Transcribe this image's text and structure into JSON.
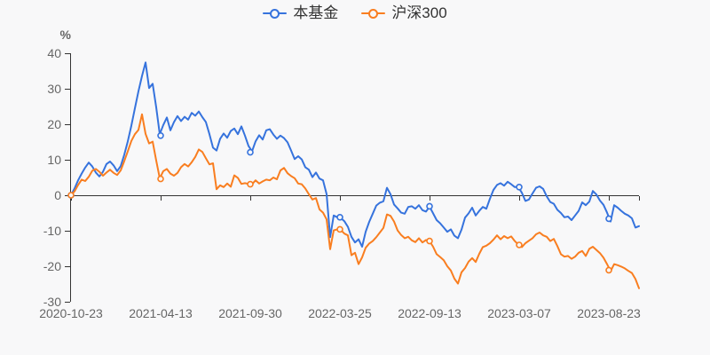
{
  "legend": {
    "items": [
      {
        "label": "本基金",
        "color": "#3673dd",
        "icon": "line-circle-marker"
      },
      {
        "label": "沪深300",
        "color": "#f97e20",
        "icon": "line-circle-marker"
      }
    ]
  },
  "colors": {
    "background": "#f8f8f9",
    "axis": "#333333",
    "tick_label": "#666666",
    "legend_text": "#333333"
  },
  "chart_data": {
    "type": "line",
    "title": "",
    "unit_label": "%",
    "xlabel": "",
    "ylabel": "%",
    "grid": false,
    "legend_position": "top-center",
    "ylim": [
      -30,
      40
    ],
    "y_ticks": [
      40,
      30,
      20,
      10,
      0,
      -10,
      -20,
      -30
    ],
    "x_tick_labels": [
      "2020-10-23",
      "2021-04-13",
      "2021-09-30",
      "2022-03-25",
      "2022-09-13",
      "2023-03-07",
      "2023-08-23"
    ],
    "marker_note": "hollow circle markers shown at each x tick date",
    "series": [
      {
        "name": "本基金",
        "color": "#3673dd",
        "marker_values": [
          0,
          16.8,
          12.1,
          -6.2,
          -3.1,
          2.3,
          -6.6
        ],
        "values": [
          0,
          1.9,
          4.2,
          6.1,
          7.8,
          9.2,
          8.1,
          6.4,
          5.3,
          6.6,
          8.8,
          9.5,
          8.4,
          6.8,
          8.2,
          11.4,
          15.2,
          19.6,
          24.5,
          29.3,
          33.6,
          37.4,
          30.2,
          31.4,
          24.8,
          17.2,
          19.8,
          21.9,
          18.3,
          20.6,
          22.3,
          20.9,
          22.1,
          21.3,
          23.2,
          22.4,
          23.6,
          22.0,
          20.6,
          17.2,
          13.4,
          12.6,
          15.9,
          17.4,
          16.2,
          18.1,
          18.8,
          17.2,
          19.4,
          16.8,
          13.9,
          12.4,
          15.2,
          16.9,
          15.7,
          18.3,
          18.6,
          17.1,
          15.9,
          16.8,
          16.1,
          14.9,
          12.6,
          10.2,
          11.0,
          10.1,
          7.9,
          7.2,
          5.1,
          6.4,
          4.7,
          4.2,
          0.3,
          -11.8,
          -5.7,
          -6.2,
          -6.4,
          -7.3,
          -8.9,
          -11.7,
          -13.3,
          -12.4,
          -14.5,
          -10.3,
          -7.5,
          -5.2,
          -2.9,
          -2.1,
          -1.7,
          2.1,
          0.3,
          -2.6,
          -3.7,
          -4.9,
          -5.2,
          -3.3,
          -3.1,
          -3.8,
          -2.8,
          -4.2,
          -4.6,
          -3.2,
          -5.1,
          -7.0,
          -7.9,
          -9.1,
          -10.3,
          -9.6,
          -11.4,
          -12.1,
          -9.7,
          -6.3,
          -5.1,
          -3.5,
          -5.7,
          -4.4,
          -3.3,
          -3.8,
          -1.0,
          1.5,
          2.9,
          3.4,
          2.7,
          3.8,
          3.1,
          2.3,
          2.3,
          0.7,
          -1.6,
          -1.2,
          0.5,
          2.1,
          2.5,
          1.8,
          -0.3,
          -1.9,
          -2.4,
          -4.1,
          -5.0,
          -6.2,
          -6.0,
          -7.0,
          -5.7,
          -4.4,
          -2.0,
          -2.8,
          -1.8,
          1.2,
          0.2,
          -1.5,
          -2.7,
          -4.9,
          -7.4,
          -2.8,
          -3.5,
          -4.4,
          -5.2,
          -5.7,
          -6.5,
          -9.1,
          -8.7
        ]
      },
      {
        "name": "沪深300",
        "color": "#f97e20",
        "marker_values": [
          0,
          4.6,
          3.1,
          -9.6,
          -12.9,
          -14.0,
          -21.1
        ],
        "values": [
          0,
          1.1,
          2.9,
          4.4,
          4.0,
          5.2,
          6.9,
          7.4,
          6.6,
          5.5,
          6.4,
          7.2,
          6.3,
          5.7,
          7.0,
          9.6,
          12.4,
          15.3,
          17.2,
          18.4,
          22.8,
          17.3,
          14.6,
          15.1,
          9.8,
          4.8,
          6.8,
          7.4,
          6.1,
          5.5,
          6.3,
          7.9,
          8.8,
          8.1,
          9.3,
          10.8,
          12.9,
          12.2,
          10.4,
          8.7,
          9.0,
          1.7,
          2.8,
          2.3,
          3.3,
          2.4,
          5.6,
          4.9,
          3.2,
          3.4,
          3.2,
          3.1,
          4.2,
          3.3,
          3.9,
          4.4,
          4.2,
          5.0,
          4.5,
          7.0,
          7.7,
          6.2,
          5.4,
          4.8,
          3.3,
          3.1,
          1.9,
          0.3,
          -1.2,
          -0.8,
          -4.0,
          -4.9,
          -6.8,
          -15.2,
          -9.9,
          -9.6,
          -9.8,
          -10.8,
          -11.3,
          -16.9,
          -16.2,
          -19.4,
          -17.5,
          -14.8,
          -13.6,
          -12.9,
          -11.8,
          -10.5,
          -9.2,
          -5.4,
          -5.8,
          -7.4,
          -9.9,
          -11.2,
          -12.1,
          -11.7,
          -12.7,
          -13.2,
          -12.1,
          -13.3,
          -12.6,
          -12.9,
          -14.5,
          -16.6,
          -17.4,
          -18.3,
          -20.0,
          -21.2,
          -23.5,
          -24.9,
          -21.7,
          -20.5,
          -18.7,
          -17.7,
          -18.8,
          -16.5,
          -14.6,
          -14.2,
          -13.5,
          -12.5,
          -11.3,
          -12.4,
          -11.5,
          -12.1,
          -11.6,
          -12.9,
          -13.9,
          -14.6,
          -13.5,
          -12.8,
          -12.1,
          -11.0,
          -10.5,
          -11.3,
          -11.7,
          -12.9,
          -12.3,
          -14.3,
          -16.6,
          -17.3,
          -17.1,
          -17.9,
          -17.3,
          -16.2,
          -15.7,
          -17.1,
          -15.1,
          -14.5,
          -15.4,
          -16.3,
          -17.6,
          -19.4,
          -21.4,
          -19.4,
          -19.7,
          -20.1,
          -20.6,
          -21.3,
          -21.9,
          -23.6,
          -26.2
        ]
      }
    ]
  }
}
